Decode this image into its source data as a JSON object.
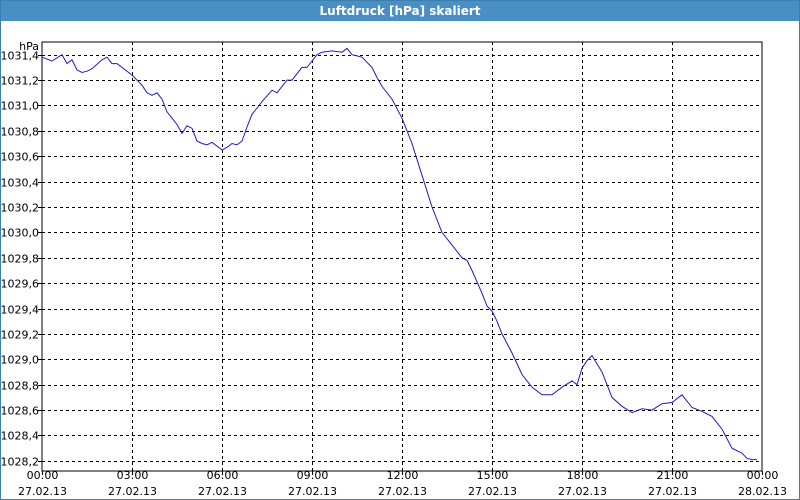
{
  "window": {
    "title": "Luftdruck [hPa] skaliert"
  },
  "colors": {
    "titlebar": "#4a8fc4",
    "line": "#1a1ad0",
    "grid": "#000000"
  },
  "chart_data": {
    "type": "line",
    "title": "Luftdruck [hPa] skaliert",
    "ylabel": "hPa",
    "xlabel": "",
    "ylim": [
      1028.12,
      1031.5
    ],
    "xlim": [
      "27.02.13 00:00",
      "28.02.13 00:00"
    ],
    "grid": true,
    "yticks": [
      "1028,2",
      "1028,4",
      "1028,6",
      "1028,8",
      "1029,0",
      "1029,2",
      "1029,4",
      "1029,6",
      "1029,8",
      "1030,0",
      "1030,2",
      "1030,4",
      "1030,6",
      "1030,8",
      "1031,0",
      "1031,2",
      "1031,4"
    ],
    "xticks": [
      {
        "time": "00:00",
        "date": "27.02.13"
      },
      {
        "time": "03:00",
        "date": "27.02.13"
      },
      {
        "time": "06:00",
        "date": "27.02.13"
      },
      {
        "time": "09:00",
        "date": "27.02.13"
      },
      {
        "time": "12:00",
        "date": "27.02.13"
      },
      {
        "time": "15:00",
        "date": "27.02.13"
      },
      {
        "time": "18:00",
        "date": "27.02.13"
      },
      {
        "time": "21:00",
        "date": "27.02.13"
      },
      {
        "time": "00:00",
        "date": "28.02.13"
      }
    ],
    "series": [
      {
        "x": [
          "27.02.13 00:00",
          "27.02.13 00:20",
          "27.02.13 00:40",
          "27.02.13 00:50",
          "27.02.13 01:00",
          "27.02.13 01:10",
          "27.02.13 01:20",
          "27.02.13 01:30",
          "27.02.13 01:40",
          "27.02.13 02:00",
          "27.02.13 02:10",
          "27.02.13 02:20",
          "27.02.13 02:30",
          "27.02.13 02:40",
          "27.02.13 03:00",
          "27.02.13 03:20",
          "27.02.13 03:30",
          "27.02.13 03:40",
          "27.02.13 03:50",
          "27.02.13 04:00",
          "27.02.13 04:10",
          "27.02.13 04:20",
          "27.02.13 04:30",
          "27.02.13 04:40",
          "27.02.13 04:50",
          "27.02.13 05:00",
          "27.02.13 05:10",
          "27.02.13 05:20",
          "27.02.13 05:30",
          "27.02.13 05:40",
          "27.02.13 06:00",
          "27.02.13 06:10",
          "27.02.13 06:20",
          "27.02.13 06:30",
          "27.02.13 06:40",
          "27.02.13 06:50",
          "27.02.13 07:00",
          "27.02.13 07:10",
          "27.02.13 07:20",
          "27.02.13 07:40",
          "27.02.13 07:50",
          "27.02.13 08:00",
          "27.02.13 08:10",
          "27.02.13 08:20",
          "27.02.13 08:30",
          "27.02.13 08:40",
          "27.02.13 08:50",
          "27.02.13 09:00",
          "27.02.13 09:10",
          "27.02.13 09:20",
          "27.02.13 09:40",
          "27.02.13 10:00",
          "27.02.13 10:10",
          "27.02.13 10:20",
          "27.02.13 10:40",
          "27.02.13 11:00",
          "27.02.13 11:10",
          "27.02.13 11:20",
          "27.02.13 11:40",
          "27.02.13 12:00",
          "27.02.13 12:20",
          "27.02.13 12:40",
          "27.02.13 13:00",
          "27.02.13 13:20",
          "27.02.13 13:40",
          "27.02.13 13:50",
          "27.02.13 14:00",
          "27.02.13 14:10",
          "27.02.13 14:20",
          "27.02.13 14:40",
          "27.02.13 14:50",
          "27.02.13 15:00",
          "27.02.13 15:10",
          "27.02.13 15:20",
          "27.02.13 15:40",
          "27.02.13 16:00",
          "27.02.13 16:20",
          "27.02.13 16:40",
          "27.02.13 17:00",
          "27.02.13 17:20",
          "27.02.13 17:40",
          "27.02.13 17:50",
          "27.02.13 18:00",
          "27.02.13 18:10",
          "27.02.13 18:20",
          "27.02.13 18:40",
          "27.02.13 19:00",
          "27.02.13 19:20",
          "27.02.13 19:40",
          "27.02.13 20:00",
          "27.02.13 20:20",
          "27.02.13 20:40",
          "27.02.13 21:00",
          "27.02.13 21:20",
          "27.02.13 21:40",
          "27.02.13 22:00",
          "27.02.13 22:20",
          "27.02.13 22:40",
          "27.02.13 23:00",
          "27.02.13 23:20",
          "27.02.13 23:30",
          "27.02.13 23:40",
          "27.02.13 23:50"
        ],
        "y": [
          1031.38,
          1031.35,
          1031.4,
          1031.33,
          1031.36,
          1031.28,
          1031.26,
          1031.27,
          1031.29,
          1031.36,
          1031.38,
          1031.33,
          1031.33,
          1031.3,
          1031.24,
          1031.16,
          1031.1,
          1031.08,
          1031.1,
          1031.05,
          1030.95,
          1030.9,
          1030.85,
          1030.78,
          1030.84,
          1030.82,
          1030.72,
          1030.7,
          1030.69,
          1030.71,
          1030.65,
          1030.67,
          1030.7,
          1030.69,
          1030.72,
          1030.83,
          1030.93,
          1030.98,
          1031.03,
          1031.12,
          1031.1,
          1031.15,
          1031.2,
          1031.2,
          1031.25,
          1031.3,
          1031.3,
          1031.35,
          1031.4,
          1031.42,
          1031.43,
          1031.42,
          1031.45,
          1031.4,
          1031.38,
          1031.3,
          1031.22,
          1031.15,
          1031.05,
          1030.9,
          1030.7,
          1030.45,
          1030.2,
          1030.0,
          1029.9,
          1029.85,
          1029.8,
          1029.78,
          1029.7,
          1029.52,
          1029.42,
          1029.38,
          1029.3,
          1029.2,
          1029.05,
          1028.88,
          1028.78,
          1028.72,
          1028.72,
          1028.78,
          1028.83,
          1028.8,
          1028.93,
          1028.99,
          1029.03,
          1028.9,
          1028.7,
          1028.63,
          1028.58,
          1028.61,
          1028.6,
          1028.65,
          1028.66,
          1028.72,
          1028.62,
          1028.59,
          1028.55,
          1028.45,
          1028.3,
          1028.26,
          1028.22,
          1028.21,
          1028.21
        ]
      }
    ]
  }
}
